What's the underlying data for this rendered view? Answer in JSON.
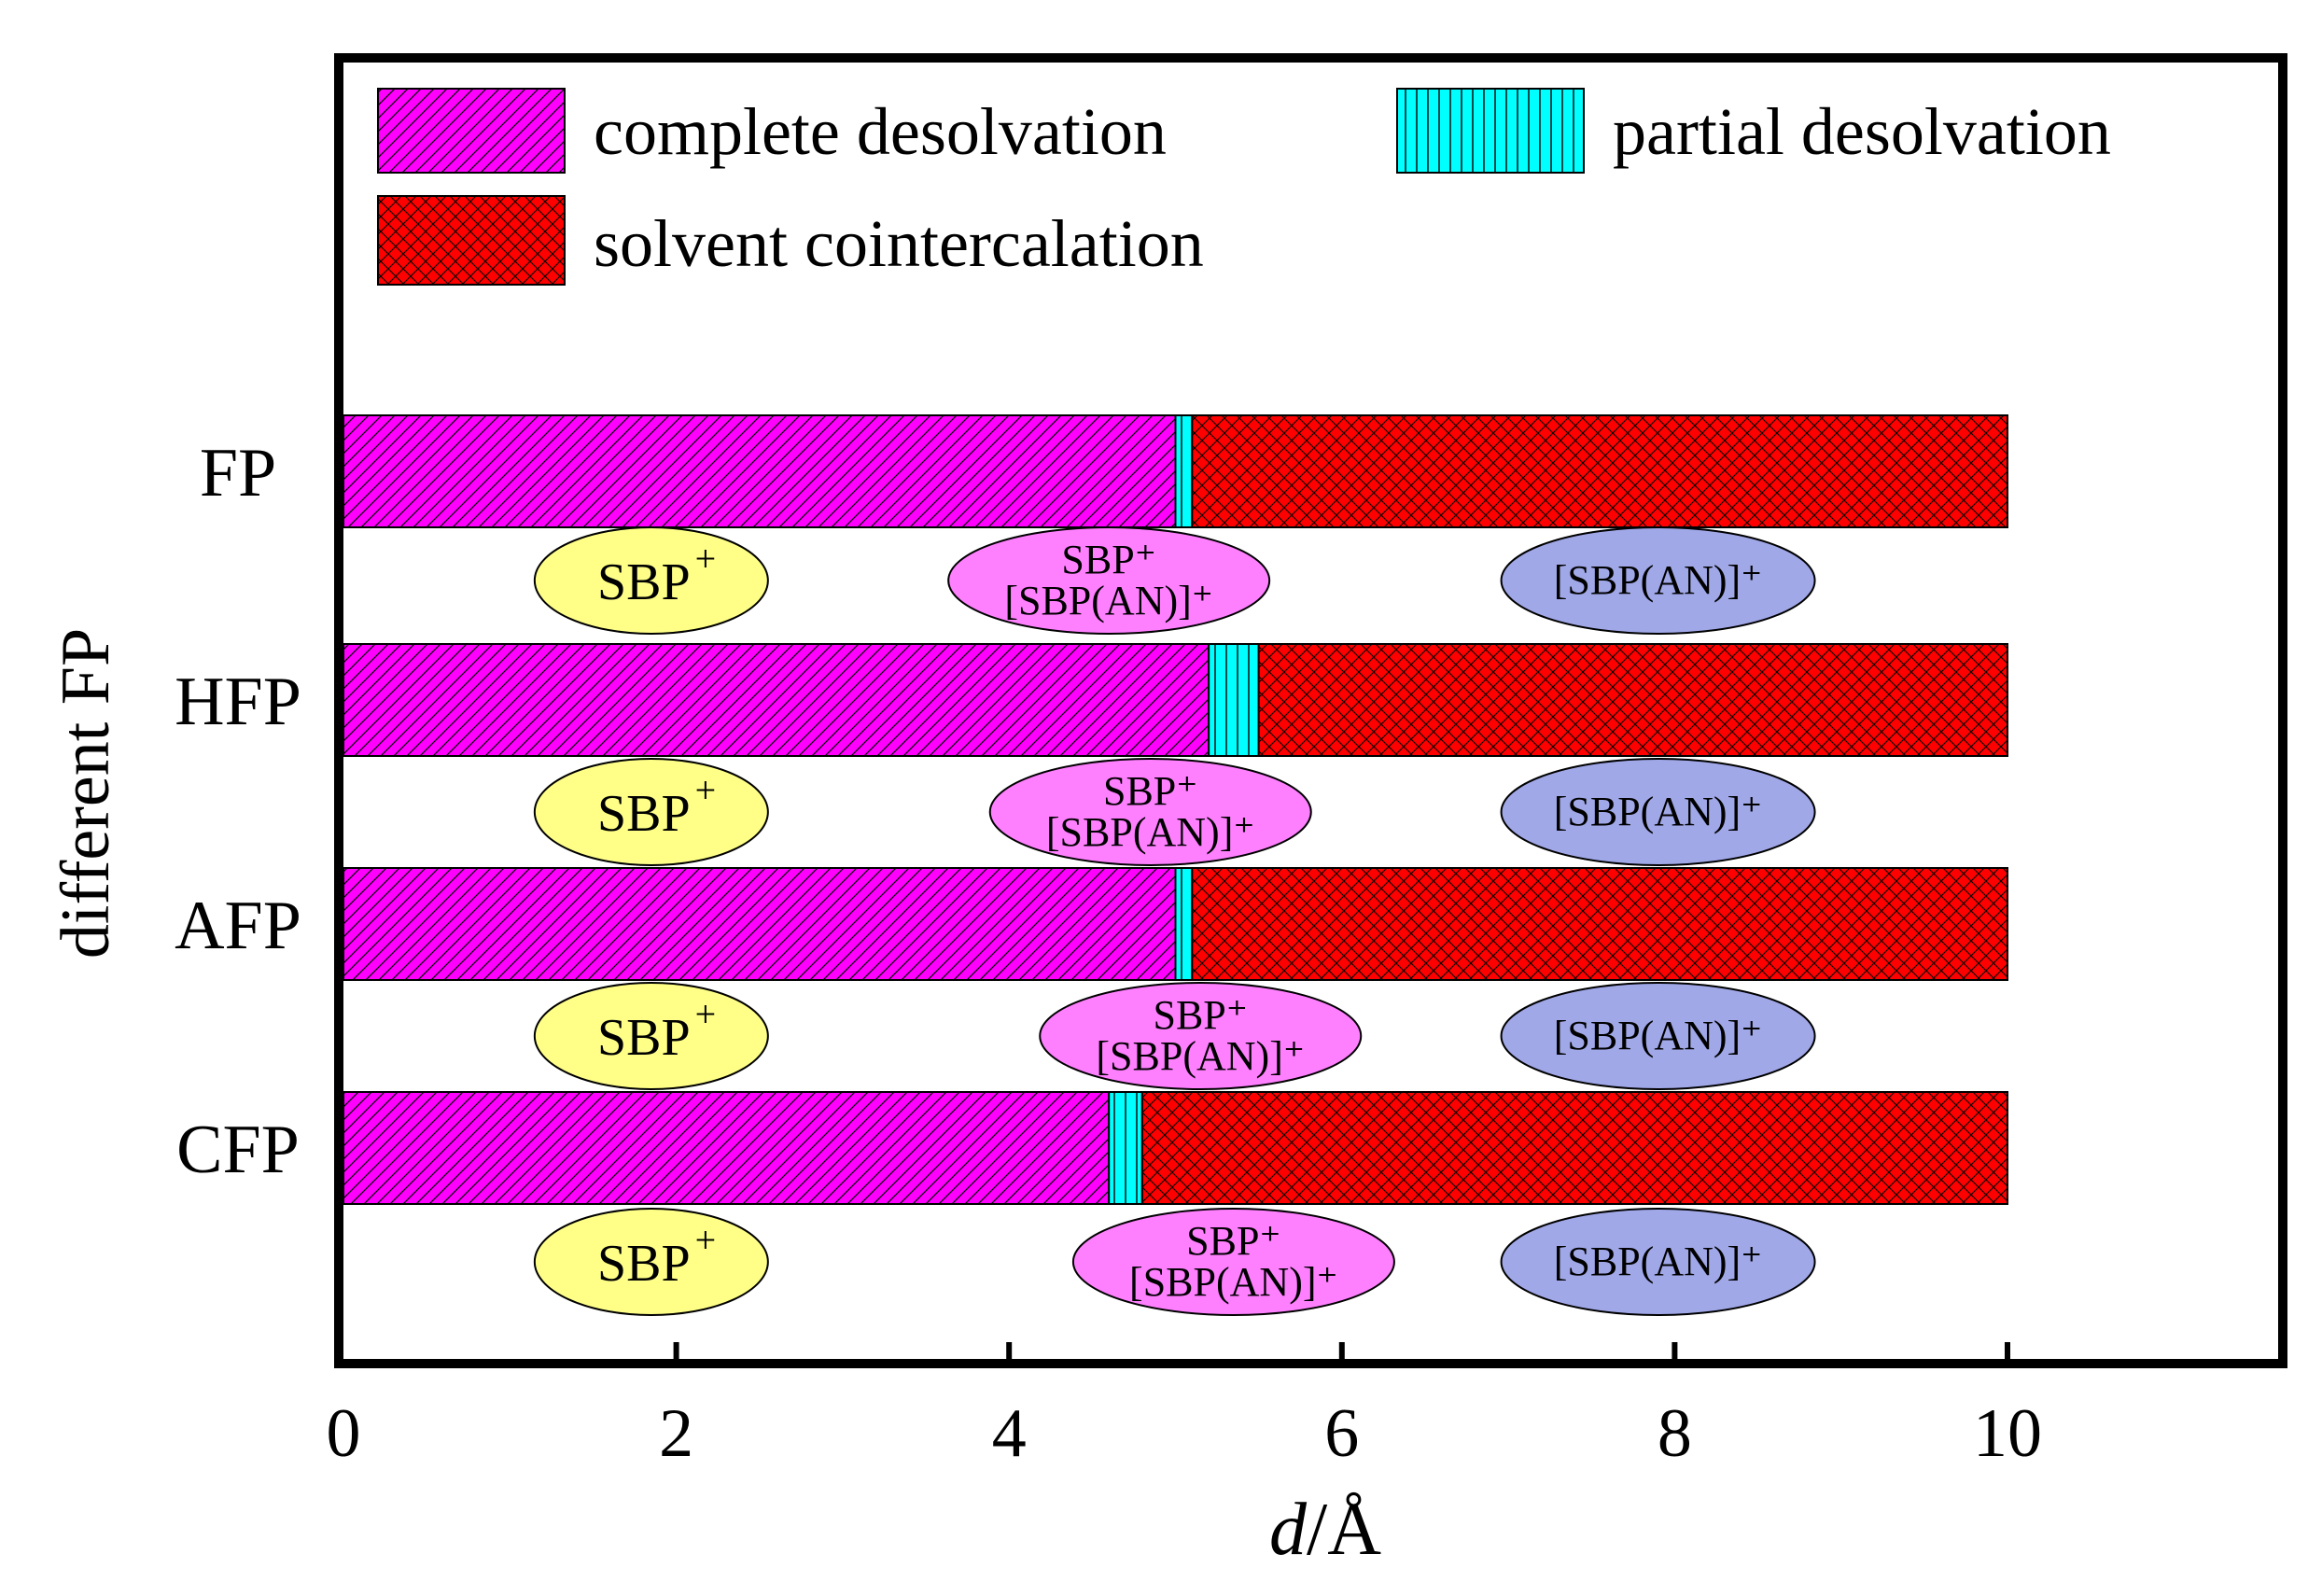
{
  "chart_data": {
    "type": "bar",
    "orientation": "horizontal",
    "stacked": true,
    "categories": [
      "FP",
      "HFP",
      "AFP",
      "CFP"
    ],
    "series": [
      {
        "name": "complete desolvation",
        "values": [
          0,
          0,
          0,
          0
        ],
        "ends": [
          5.0,
          5.2,
          5.0,
          4.6
        ]
      },
      {
        "name": "partial desolvation",
        "starts": [
          5.0,
          5.2,
          5.0,
          4.6
        ],
        "ends": [
          5.1,
          5.5,
          5.1,
          4.8
        ]
      },
      {
        "name": "solvent cointercalation",
        "starts": [
          5.1,
          5.5,
          5.1,
          4.8
        ],
        "ends": [
          10.0,
          10.0,
          10.0,
          10.0
        ]
      }
    ],
    "ylabel": "different FP",
    "xlabel_italic": "d",
    "xlabel_rest": "/Å",
    "xlim": [
      0,
      11.7
    ],
    "xticks": [
      0,
      2,
      4,
      6,
      8,
      10
    ],
    "grid": false,
    "legend": "top",
    "annotations": [
      {
        "category": "FP",
        "items": [
          {
            "x": 1.85,
            "lines": [
              "SBP",
              "+"
            ],
            "style": "yellow"
          },
          {
            "x": 4.6,
            "lines": [
              "SBP⁺",
              "[SBP(AN)]⁺"
            ],
            "style": "pink"
          },
          {
            "x": 7.9,
            "lines": [
              "[SBP(AN)]⁺"
            ],
            "style": "blue"
          }
        ]
      },
      {
        "category": "HFP",
        "items": [
          {
            "x": 1.85,
            "lines": [
              "SBP",
              "+"
            ],
            "style": "yellow"
          },
          {
            "x": 4.85,
            "lines": [
              "SBP⁺",
              "[SBP(AN)]⁺"
            ],
            "style": "pink"
          },
          {
            "x": 7.9,
            "lines": [
              "[SBP(AN)]⁺"
            ],
            "style": "blue"
          }
        ]
      },
      {
        "category": "AFP",
        "items": [
          {
            "x": 1.85,
            "lines": [
              "SBP",
              "+"
            ],
            "style": "yellow"
          },
          {
            "x": 5.15,
            "lines": [
              "SBP⁺",
              "[SBP(AN)]⁺"
            ],
            "style": "pink"
          },
          {
            "x": 7.9,
            "lines": [
              "[SBP(AN)]⁺"
            ],
            "style": "blue"
          }
        ]
      },
      {
        "category": "CFP",
        "items": [
          {
            "x": 1.85,
            "lines": [
              "SBP",
              "+"
            ],
            "style": "yellow"
          },
          {
            "x": 5.35,
            "lines": [
              "SBP⁺",
              "[SBP(AN)]⁺"
            ],
            "style": "pink"
          },
          {
            "x": 7.9,
            "lines": [
              "[SBP(AN)]⁺"
            ],
            "style": "blue"
          }
        ]
      }
    ],
    "colors": {
      "complete": "#ff00ff",
      "partial": "#00ffff",
      "cointercalation": "#ff0000",
      "ellipse_yellow": "#ffff88",
      "ellipse_pink": "#ff80ff",
      "ellipse_blue": "#a0a8e8"
    }
  }
}
